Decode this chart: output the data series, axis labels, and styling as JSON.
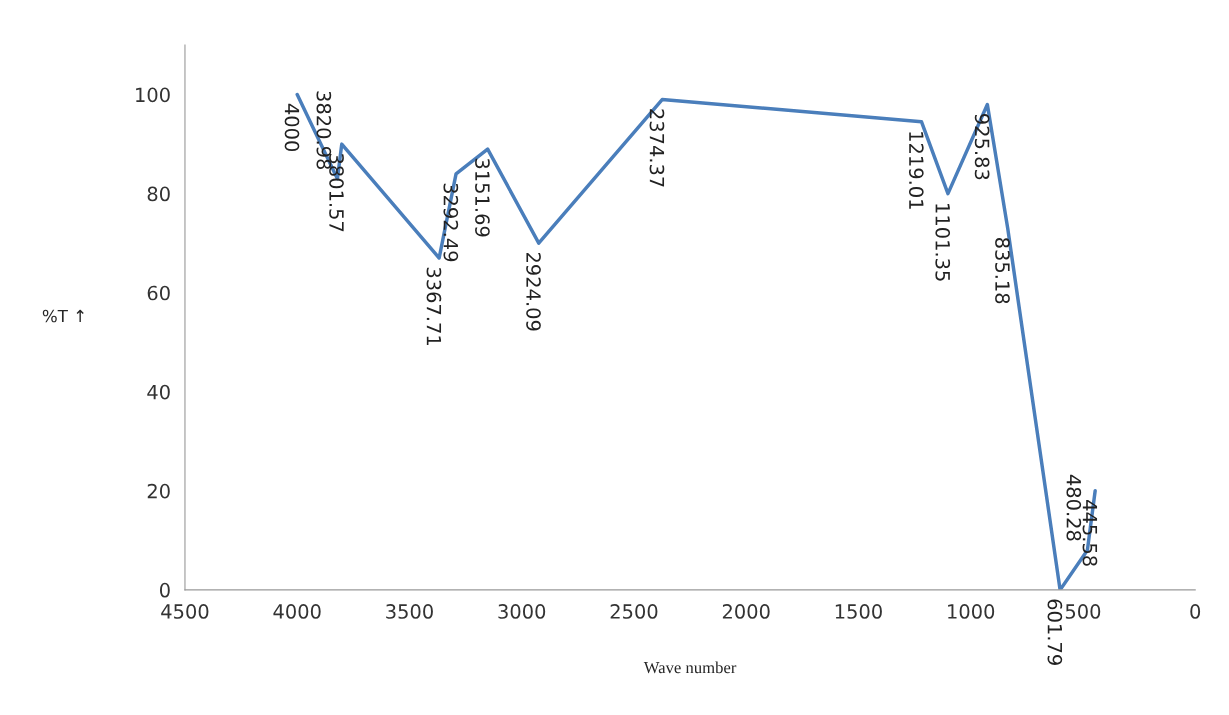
{
  "chart_data": {
    "type": "line",
    "xlabel": "Wave number",
    "ylabel": "%T ↑",
    "x": [
      4000,
      3820.98,
      3801.57,
      3367.71,
      3292.49,
      3151.69,
      2924.09,
      2374.37,
      1219.01,
      1101.35,
      925.83,
      835.18,
      601.79,
      480.28,
      445.58
    ],
    "series": [
      {
        "color": "#4a7ebb",
        "values": [
          100,
          83,
          90,
          67,
          84,
          89,
          70,
          99,
          94.5,
          80,
          98,
          73,
          0,
          8,
          20
        ]
      }
    ],
    "value_labels": [
      "4000",
      "3820.98",
      "3801.57",
      "3367.71",
      "3292.49",
      "3151.69",
      "2924.09",
      "2374.37",
      "1219.01",
      "1101.35",
      "925.83",
      "835.18",
      "601.79",
      "480.28",
      "445.58"
    ],
    "xlim": [
      4500,
      0
    ],
    "xticks": [
      4500,
      4000,
      3500,
      3000,
      2500,
      2000,
      1500,
      1000,
      500,
      0
    ],
    "ylim": [
      0,
      110
    ],
    "yticks": [
      0,
      20,
      40,
      60,
      80,
      100
    ],
    "grid": false,
    "legend": false,
    "marker": "none",
    "line_style": "solid"
  }
}
